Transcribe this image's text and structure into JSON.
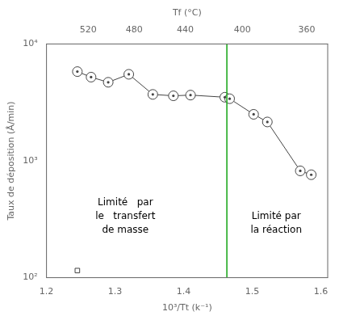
{
  "chart_data": {
    "type": "line",
    "log": "y",
    "grid": false,
    "xlabel": "10³/Tt (k⁻¹)",
    "ylabel": "Taux de déposition (Å/min)",
    "x2label": "Tf (°C)",
    "xlim": [
      1.2,
      1.61
    ],
    "xticks": [
      1.2,
      1.3,
      1.4,
      1.5,
      1.6
    ],
    "x2lim": [
      1.2,
      1.61
    ],
    "x2ticks": [
      {
        "value": 1.2608,
        "label": "520"
      },
      {
        "value": 1.3278,
        "label": "480"
      },
      {
        "value": 1.4022,
        "label": "440"
      },
      {
        "value": 1.4856,
        "label": "400"
      },
      {
        "value": 1.5794,
        "label": "360"
      }
    ],
    "ylim": [
      100,
      10000
    ],
    "yticks": [
      {
        "value": 100,
        "label": "10²"
      },
      {
        "value": 1000,
        "label": "10³"
      },
      {
        "value": 10000,
        "label": "10⁴"
      }
    ],
    "series": [
      {
        "x": [
          1.245,
          1.265,
          1.29,
          1.32,
          1.355,
          1.385,
          1.41,
          1.46,
          1.467,
          1.502,
          1.522,
          1.57,
          1.586
        ],
        "values": [
          5800,
          5200,
          4700,
          5500,
          3700,
          3600,
          3650,
          3500,
          3400,
          2500,
          2150,
          820,
          760
        ],
        "color": "#444444",
        "marker": "circle",
        "line_style": "solid"
      },
      {
        "x": [
          1.245
        ],
        "values": [
          115
        ],
        "color": "#444444",
        "marker": "square",
        "line_style": "none"
      }
    ],
    "vlines": [
      {
        "x": 1.463,
        "color": "#22aa22"
      }
    ],
    "annotations": [
      {
        "text": "Limité   par\nle   transfert\nde masse",
        "x": 1.315,
        "y": 230
      },
      {
        "text": "Limité par\nla réaction",
        "x": 1.535,
        "y": 230
      }
    ]
  }
}
